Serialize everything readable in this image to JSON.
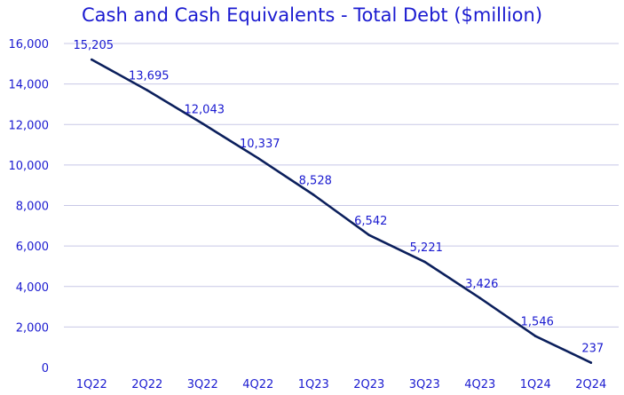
{
  "chart_data": {
    "type": "line",
    "title": "Cash and Cash Equivalents - Total Debt ($million)",
    "xlabel": "",
    "ylabel": "",
    "categories": [
      "1Q22",
      "2Q22",
      "3Q22",
      "4Q22",
      "1Q23",
      "2Q23",
      "3Q23",
      "4Q23",
      "1Q24",
      "2Q24"
    ],
    "series": [
      {
        "values": [
          15205,
          13695,
          12043,
          10337,
          8528,
          6542,
          5221,
          3426,
          1546,
          237
        ],
        "data_labels": [
          "15,205",
          "13,695",
          "12,043",
          "10,337",
          "8,528",
          "6,542",
          "5,221",
          "3,426",
          "1,546",
          "237"
        ]
      }
    ],
    "ylim": [
      0,
      16000
    ],
    "yticks": [
      0,
      2000,
      4000,
      6000,
      8000,
      10000,
      12000,
      14000,
      16000
    ],
    "ytick_labels": [
      "0",
      "2,000",
      "4,000",
      "6,000",
      "8,000",
      "10,000",
      "12,000",
      "14,000",
      "16,000"
    ],
    "grid": "horizontal",
    "legend": "none",
    "colors": {
      "line": "#0b1f5c",
      "text": "#1a1ad0",
      "grid": "#c8c8e6"
    }
  }
}
